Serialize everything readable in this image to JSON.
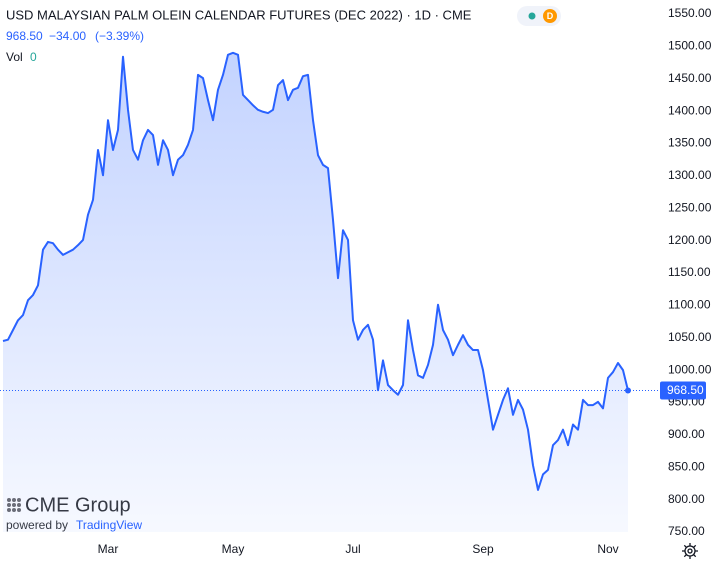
{
  "header": {
    "title": "USD MALAYSIAN PALM OLEIN CALENDAR FUTURES (DEC 2022) · 1D · CME",
    "price": "968.50",
    "change": "−34.00",
    "change_pct": "(−3.39%)",
    "vol_label": "Vol",
    "vol_value": "0",
    "badge": "D"
  },
  "branding": {
    "logo": "CME Group",
    "powered_by": "powered by",
    "platform": "TradingView"
  },
  "chart_data": {
    "type": "area",
    "categories": [
      null,
      null,
      null,
      null,
      null,
      null,
      null,
      null,
      null,
      null,
      null,
      null,
      null,
      null,
      null,
      null,
      null,
      null,
      null,
      null,
      null,
      "Mar",
      null,
      null,
      null,
      null,
      null,
      null,
      null,
      null,
      null,
      null,
      null,
      null,
      null,
      null,
      null,
      null,
      null,
      null,
      null,
      null,
      null,
      null,
      null,
      null,
      "May",
      null,
      null,
      null,
      null,
      null,
      null,
      null,
      null,
      null,
      null,
      null,
      null,
      null,
      null,
      null,
      null,
      null,
      null,
      null,
      null,
      null,
      null,
      null,
      "Jul",
      null,
      null,
      null,
      null,
      null,
      null,
      null,
      null,
      null,
      null,
      null,
      null,
      null,
      null,
      null,
      null,
      null,
      null,
      null,
      null,
      null,
      null,
      null,
      null,
      null,
      "Sep",
      null,
      null,
      null,
      null,
      null,
      null,
      null,
      null,
      null,
      null,
      null,
      null,
      null,
      null,
      null,
      null,
      null,
      null,
      null,
      null,
      null,
      null,
      null,
      null,
      "Nov",
      null,
      null,
      null,
      null
    ],
    "series": [
      {
        "name": "USD Malaysian Palm Olein Calendar Futures",
        "color": "#2962ff",
        "values": [
          1045,
          1047,
          1062,
          1077,
          1085,
          1108,
          1116,
          1131,
          1186,
          1198,
          1196,
          1186,
          1178,
          1182,
          1186,
          1193,
          1201,
          1240,
          1263,
          1340,
          1301,
          1386,
          1340,
          1371,
          1484,
          1402,
          1340,
          1325,
          1355,
          1371,
          1363,
          1317,
          1355,
          1340,
          1301,
          1325,
          1332,
          1348,
          1371,
          1456,
          1451,
          1417,
          1386,
          1433,
          1456,
          1487,
          1490,
          1487,
          1425,
          1417,
          1409,
          1402,
          1399,
          1397,
          1402,
          1440,
          1448,
          1417,
          1433,
          1436,
          1454,
          1456,
          1386,
          1332,
          1317,
          1312,
          1232,
          1142,
          1216,
          1201,
          1077,
          1047,
          1062,
          1070,
          1047,
          969,
          1015,
          977,
          969,
          962,
          977,
          1077,
          1031,
          992,
          988,
          1008,
          1039,
          1101,
          1062,
          1047,
          1023,
          1039,
          1054,
          1039,
          1031,
          1031,
          1000,
          954,
          908,
          931,
          954,
          972,
          931,
          954,
          939,
          908,
          853,
          815,
          839,
          846,
          884,
          892,
          908,
          884,
          916,
          908,
          954,
          946,
          946,
          951,
          941,
          988,
          997,
          1011,
          1000,
          968.5
        ]
      }
    ],
    "ylim": [
      750,
      1550
    ],
    "yticks": [
      {
        "value": 750,
        "label": "750.00"
      },
      {
        "value": 800,
        "label": "800.00"
      },
      {
        "value": 850,
        "label": "850.00"
      },
      {
        "value": 900,
        "label": "900.00"
      },
      {
        "value": 950,
        "label": "950.00"
      },
      {
        "value": 1000,
        "label": "1000.00"
      },
      {
        "value": 1050,
        "label": "1050.00"
      },
      {
        "value": 1100,
        "label": "1100.00"
      },
      {
        "value": 1150,
        "label": "1150.00"
      },
      {
        "value": 1200,
        "label": "1200.00"
      },
      {
        "value": 1250,
        "label": "1250.00"
      },
      {
        "value": 1300,
        "label": "1300.00"
      },
      {
        "value": 1350,
        "label": "1350.00"
      },
      {
        "value": 1400,
        "label": "1400.00"
      },
      {
        "value": 1450,
        "label": "1450.00"
      },
      {
        "value": 1500,
        "label": "1500.00"
      },
      {
        "value": 1550,
        "label": "1550.00"
      }
    ],
    "grid": false
  }
}
